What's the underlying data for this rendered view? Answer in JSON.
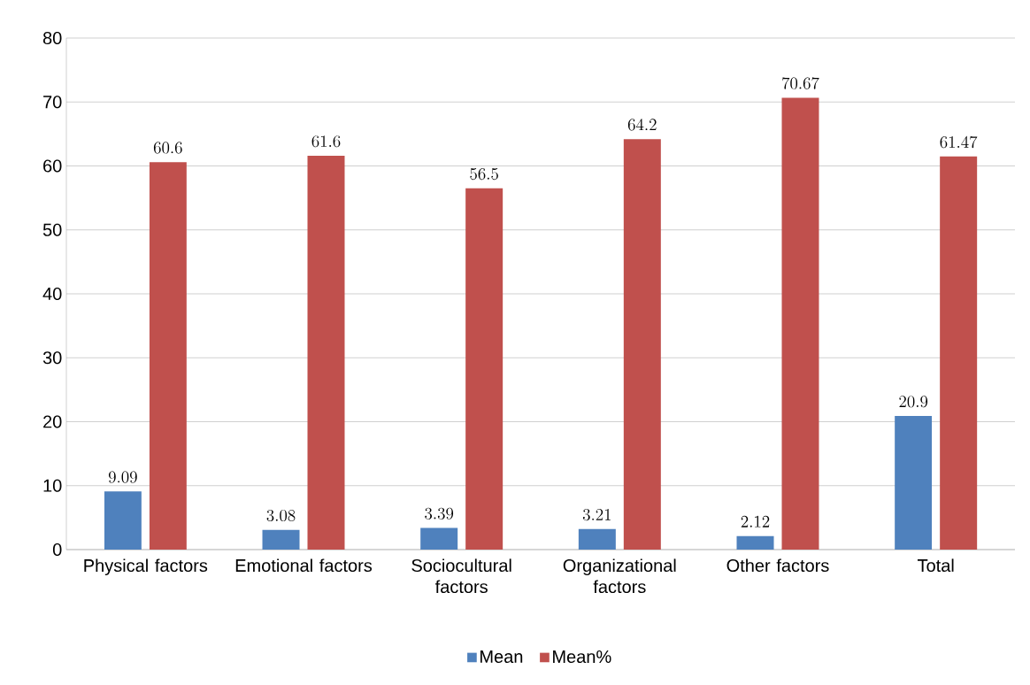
{
  "chart_data": {
    "type": "bar",
    "categories": [
      "Physical factors",
      "Emotional factors",
      "Sociocultural factors",
      "Organizational factors",
      "Other factors",
      "Total"
    ],
    "series": [
      {
        "name": "Mean",
        "color": "#4f81bd",
        "values": [
          9.09,
          3.08,
          3.39,
          3.21,
          2.12,
          20.9
        ]
      },
      {
        "name": "Mean%",
        "color": "#c0504d",
        "values": [
          60.6,
          61.6,
          56.5,
          64.2,
          70.67,
          61.47
        ]
      }
    ],
    "ylim": [
      0,
      80
    ],
    "yticks": [
      0,
      10,
      20,
      30,
      40,
      50,
      60,
      70,
      80
    ],
    "grid": "y",
    "legend": "bottom",
    "data_labels": true
  }
}
